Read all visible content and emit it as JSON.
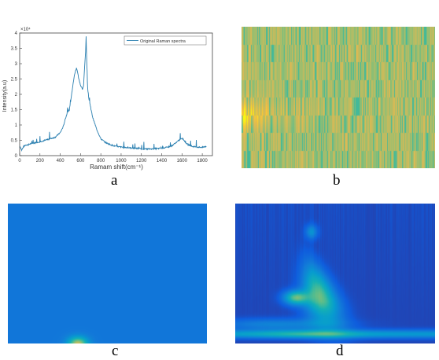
{
  "panels": {
    "a": "a",
    "b": "b",
    "c": "c",
    "d": "d"
  },
  "chart_data": [
    {
      "type": "line",
      "xlabel": "Ramam shift(cm⁻¹)",
      "ylabel": "Intensity(a.u)",
      "y_exponent_label": "×10⁴",
      "xlim": [
        0,
        1900
      ],
      "ylim": [
        0,
        4
      ],
      "x_ticks": [
        0,
        200,
        400,
        600,
        800,
        1000,
        1200,
        1400,
        1600,
        1800
      ],
      "y_ticks": [
        "0",
        "0.5",
        "1",
        "1.5",
        "2",
        "2.5",
        "3",
        "3.5",
        "4"
      ],
      "legend": {
        "label": "Original Raman spectra",
        "placement": "top-right"
      },
      "line_color": "#2a7fb0",
      "series": [
        {
          "name": "Original Raman spectra",
          "x": [
            5,
            20,
            40,
            60,
            80,
            100,
            150,
            200,
            250,
            300,
            350,
            400,
            430,
            450,
            470,
            480,
            490,
            500,
            520,
            540,
            560,
            570,
            580,
            600,
            620,
            630,
            640,
            650,
            655,
            660,
            665,
            670,
            680,
            700,
            720,
            740,
            760,
            780,
            800,
            850,
            900,
            950,
            1000,
            1100,
            1200,
            1300,
            1400,
            1450,
            1500,
            1550,
            1580,
            1600,
            1620,
            1650,
            1700,
            1750,
            1800,
            1840
          ],
          "y": [
            0.3,
            0.18,
            0.3,
            0.35,
            0.35,
            0.38,
            0.42,
            0.45,
            0.5,
            0.55,
            0.6,
            0.75,
            0.95,
            1.2,
            1.4,
            1.45,
            1.5,
            1.7,
            2.2,
            2.65,
            2.85,
            2.75,
            2.55,
            2.3,
            2.15,
            2.3,
            2.9,
            3.4,
            3.9,
            3.2,
            2.6,
            2.2,
            1.9,
            1.55,
            1.25,
            1.05,
            0.85,
            0.7,
            0.55,
            0.42,
            0.35,
            0.3,
            0.28,
            0.25,
            0.22,
            0.22,
            0.24,
            0.27,
            0.32,
            0.45,
            0.52,
            0.58,
            0.5,
            0.38,
            0.3,
            0.28,
            0.27,
            0.3
          ]
        }
      ]
    },
    {
      "type": "heatmap",
      "colormap": "parula",
      "note": "narrow vertical striped texture, mostly olive-yellow"
    },
    {
      "type": "heatmap",
      "colormap": "parula",
      "note": "uniform blue field with a small bright peak at bottom near center-left"
    },
    {
      "type": "heatmap",
      "colormap": "parula",
      "note": "dark blue field with bright yellow cone peaking near top-center"
    }
  ]
}
